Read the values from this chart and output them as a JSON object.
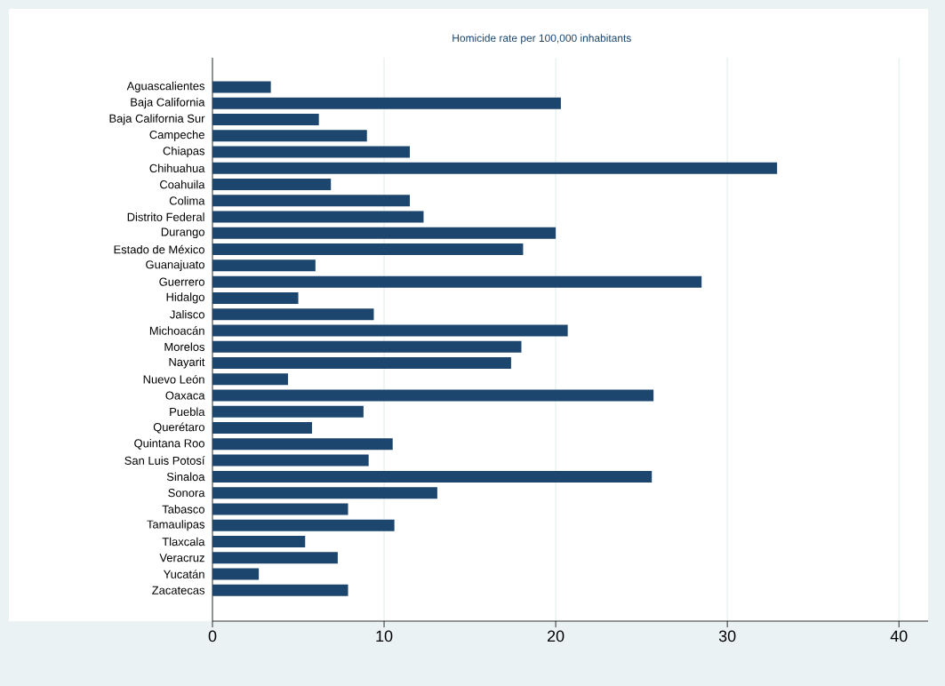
{
  "chart_data": {
    "type": "bar",
    "orientation": "horizontal",
    "title": "Homicide rate per 100,000 inhabitants",
    "categories": [
      "Aguascalientes",
      "Baja California",
      "Baja California Sur",
      "Campeche",
      "Chiapas",
      "Chihuahua",
      "Coahuila",
      "Colima",
      "Distrito Federal",
      "Durango",
      "Estado de México",
      "Guanajuato",
      "Guerrero",
      "Hidalgo",
      "Jalisco",
      "Michoacán",
      "Morelos",
      "Nayarit",
      "Nuevo León",
      "Oaxaca",
      "Puebla",
      "Querétaro",
      "Quintana Roo",
      "San Luis Potosí",
      "Sinaloa",
      "Sonora",
      "Tabasco",
      "Tamaulipas",
      "Tlaxcala",
      "Veracruz",
      "Yucatán",
      "Zacatecas"
    ],
    "values": [
      3.4,
      20.3,
      6.2,
      9.0,
      11.5,
      32.9,
      6.9,
      11.5,
      12.3,
      20.0,
      18.1,
      6.0,
      28.5,
      5.0,
      9.4,
      20.7,
      18.0,
      17.4,
      4.4,
      25.7,
      8.8,
      5.8,
      10.5,
      9.1,
      25.6,
      13.1,
      7.9,
      10.6,
      5.4,
      7.3,
      2.7,
      7.9
    ],
    "color": "#1c466e",
    "xlim": [
      0,
      41.7
    ],
    "xticks": [
      0,
      10,
      20,
      30,
      40
    ],
    "grid": "x"
  }
}
